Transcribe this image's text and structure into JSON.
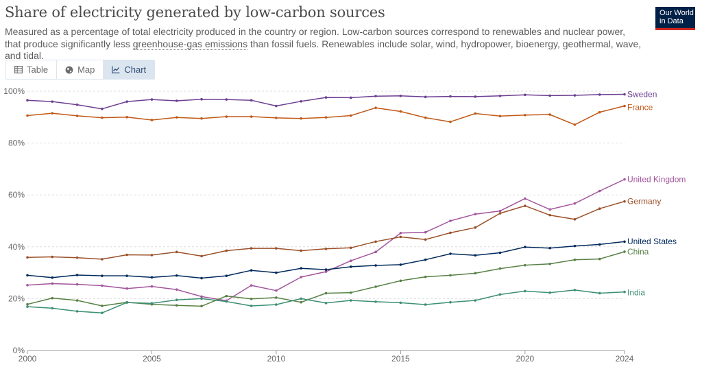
{
  "header": {
    "title": "Share of electricity generated by low-carbon sources",
    "subtitle_part1": "Measured as a percentage of total electricity produced in the country or region. Low-carbon sources correspond to renewables and nuclear power, that produce significantly less ",
    "subtitle_link": "greenhouse-gas emissions",
    "subtitle_part2": " than fossil fuels. Renewables include solar, wind, hydropower, bioenergy, geothermal, wave, and tidal."
  },
  "logo": {
    "line1": "Our World",
    "line2": "in Data"
  },
  "tabs": [
    {
      "label": "Table",
      "icon": "table-icon"
    },
    {
      "label": "Map",
      "icon": "globe-icon"
    },
    {
      "label": "Chart",
      "icon": "line-chart-icon",
      "active": true
    }
  ],
  "chart_data": {
    "type": "line",
    "title": "Share of electricity generated by low-carbon sources",
    "xlabel": "",
    "ylabel": "",
    "xlim": [
      2000,
      2024
    ],
    "ylim": [
      0,
      100
    ],
    "x_ticks": [
      2000,
      2005,
      2010,
      2015,
      2020,
      2024
    ],
    "y_ticks": [
      0,
      20,
      40,
      60,
      80,
      100
    ],
    "y_tick_labels": [
      "0%",
      "20%",
      "40%",
      "60%",
      "80%",
      "100%"
    ],
    "grid": "horizontal-dashed",
    "legend": "end-of-line labels",
    "x": [
      2000,
      2001,
      2002,
      2003,
      2004,
      2005,
      2006,
      2007,
      2008,
      2009,
      2010,
      2011,
      2012,
      2013,
      2014,
      2015,
      2016,
      2017,
      2018,
      2019,
      2020,
      2021,
      2022,
      2023,
      2024
    ],
    "series": [
      {
        "name": "Sweden",
        "color": "#6d3e91",
        "values": [
          96.5,
          96,
          94.8,
          93.2,
          96,
          96.8,
          96.3,
          96.9,
          96.8,
          96.5,
          94.3,
          96.1,
          97.6,
          97.5,
          98.1,
          98.2,
          97.8,
          98,
          97.9,
          98.2,
          98.6,
          98.3,
          98.4,
          98.7,
          98.8
        ]
      },
      {
        "name": "France",
        "color": "#c05917",
        "values": [
          90.6,
          91.5,
          90.5,
          89.8,
          90,
          88.9,
          89.9,
          89.5,
          90.2,
          90.2,
          89.7,
          89.5,
          89.9,
          90.6,
          93.6,
          92.2,
          89.8,
          88.2,
          91.4,
          90.4,
          90.8,
          91,
          87.1,
          91.9,
          94.3
        ]
      },
      {
        "name": "United Kingdom",
        "color": "#a2559c",
        "values": [
          25.2,
          25.8,
          25.5,
          25,
          23.9,
          24.7,
          23.5,
          20.8,
          19.2,
          25.1,
          23.1,
          28.3,
          30.4,
          34.6,
          38,
          45.3,
          45.6,
          50,
          52.6,
          53.8,
          58.6,
          54.4,
          56.7,
          61.5,
          66
        ]
      },
      {
        "name": "Germany",
        "color": "#9a5129",
        "values": [
          35.9,
          36.1,
          35.8,
          35.2,
          36.9,
          36.8,
          38,
          36.4,
          38.5,
          39.4,
          39.4,
          38.5,
          39.2,
          39.6,
          42,
          43.8,
          42.8,
          45.4,
          47.4,
          52.9,
          55.8,
          52.2,
          50.6,
          54.7,
          57.5
        ]
      },
      {
        "name": "United States",
        "color": "#00295b",
        "values": [
          29,
          28.1,
          29.1,
          28.8,
          28.8,
          28.2,
          28.9,
          27.9,
          28.8,
          30.9,
          30,
          31.7,
          31.2,
          32.3,
          32.8,
          33.1,
          35,
          37.3,
          36.7,
          37.7,
          39.9,
          39.5,
          40.3,
          40.9,
          42
        ]
      },
      {
        "name": "China",
        "color": "#578145",
        "values": [
          17.8,
          20.2,
          19.3,
          17.2,
          18.6,
          17.8,
          17.4,
          17.1,
          21,
          19.9,
          20.4,
          18.6,
          22.1,
          22.3,
          24.6,
          26.9,
          28.4,
          29,
          29.8,
          31.6,
          32.9,
          33.4,
          35,
          35.3,
          38.1
        ]
      },
      {
        "name": "India",
        "color": "#3c8f72",
        "values": [
          16.9,
          16.3,
          15.1,
          14.5,
          18.5,
          18.2,
          19.5,
          20,
          18.9,
          17.2,
          17.7,
          20,
          18.3,
          19.3,
          18.8,
          18.4,
          17.7,
          18.6,
          19.3,
          21.6,
          22.9,
          22.3,
          23.3,
          22.1,
          22.6
        ]
      }
    ]
  }
}
